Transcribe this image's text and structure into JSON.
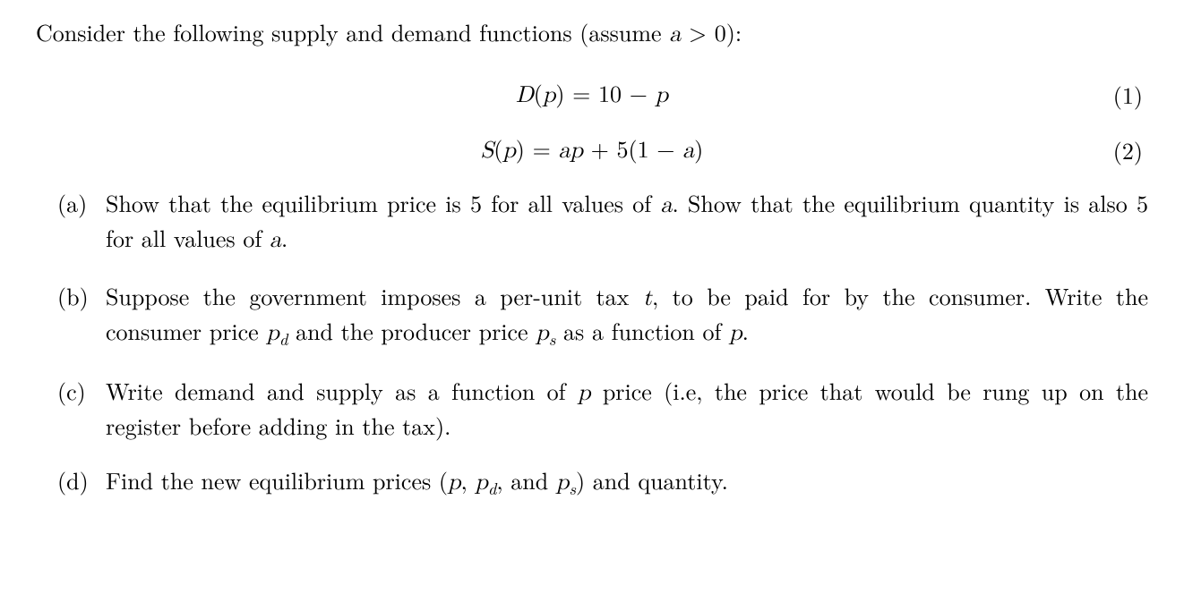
{
  "intro_prefix": "Consider the following supply and demand functions (assume ",
  "intro_cond_var": "a",
  "intro_cond_op": " > 0):",
  "eq1": {
    "lhs_fn": "D",
    "lhs_arg": "p",
    "rhs": " = 10 − ",
    "rhs_tail_var": "p",
    "num": "(1)"
  },
  "eq2": {
    "lhs_fn": "S",
    "lhs_arg": "p",
    "rhs_pre": " = ",
    "rhs_var1": "ap",
    "rhs_mid": " + 5(1 − ",
    "rhs_var2": "a",
    "rhs_post": ")",
    "num": "(2)"
  },
  "parts": {
    "a": {
      "label": "(a)",
      "t1": "Show that the equilibrium price is 5 for all values of ",
      "v1": "a",
      "t2": ".  Show that the equilibrium quantity is also 5 for all values of ",
      "v2": "a",
      "t3": "."
    },
    "b": {
      "label": "(b)",
      "t1": "Suppose the government imposes a per-unit tax ",
      "v1": "t",
      "t2": ", to be paid for by the consumer.  Write the consumer price ",
      "v2": "p",
      "s2": "d",
      "t3": " and the producer price ",
      "v3": "p",
      "s3": "s",
      "t4": " as a function of ",
      "v4": "p",
      "t5": "."
    },
    "c": {
      "label": "(c)",
      "t1": "Write demand and supply as a function of ",
      "v1": "p",
      "t2": " price (i.e, the price that would be rung up on the register before adding in the tax)."
    },
    "d": {
      "label": "(d)",
      "t1": "Find the new equilibrium prices (",
      "v1": "p",
      "t2": ", ",
      "v2": "p",
      "s2": "d",
      "t3": ", and ",
      "v3": "p",
      "s3": "s",
      "t4": ") and quantity."
    }
  }
}
